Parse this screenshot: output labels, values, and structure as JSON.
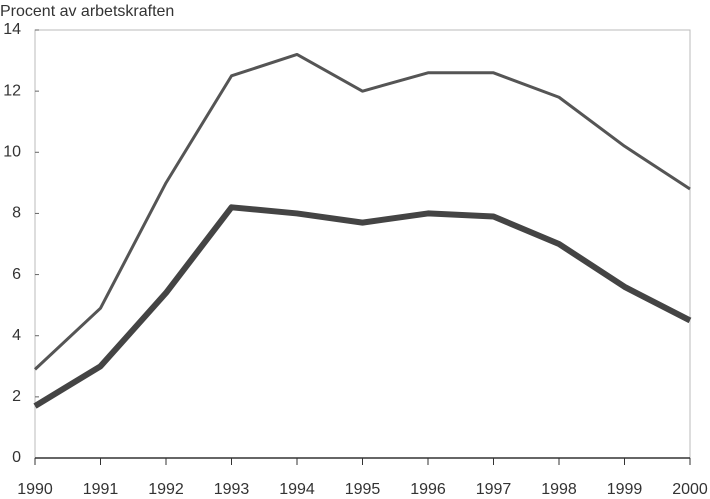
{
  "chart_data": {
    "type": "line",
    "y_label": "Procent av arbetskraften",
    "x": [
      1990,
      1991,
      1992,
      1993,
      1994,
      1995,
      1996,
      1997,
      1998,
      1999,
      2000
    ],
    "series": [
      {
        "color": "#555555",
        "width": 3,
        "values": [
          2.9,
          4.9,
          9.0,
          12.5,
          13.2,
          12.0,
          12.6,
          12.6,
          11.8,
          10.2,
          8.8
        ]
      },
      {
        "color": "#444444",
        "width": 6,
        "values": [
          1.7,
          3.0,
          5.4,
          8.2,
          8.0,
          7.7,
          8.0,
          7.9,
          7.0,
          5.6,
          4.5
        ]
      }
    ],
    "xlim": [
      1990,
      2000
    ],
    "xticks": [
      1990,
      1991,
      1992,
      1993,
      1994,
      1995,
      1996,
      1997,
      1998,
      1999,
      2000
    ],
    "ylim": [
      0,
      14
    ],
    "yticks": [
      0,
      2,
      4,
      6,
      8,
      10,
      12,
      14
    ]
  }
}
